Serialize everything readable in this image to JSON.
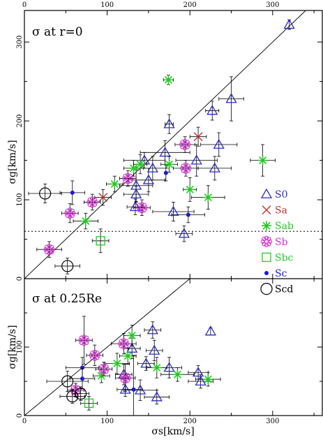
{
  "chart_data": [
    {
      "type": "scatter",
      "panel_label": "σ at r=0",
      "xlabel": "",
      "ylabel": "σg[km/s]",
      "xlim": [
        0,
        360
      ],
      "ylim": [
        0,
        340
      ],
      "x_ticks": [
        0,
        100,
        200,
        300
      ],
      "y_ticks": [
        0,
        100,
        200,
        300
      ],
      "top_ticks": [
        "0",
        "100",
        "200",
        "300"
      ],
      "left_ticks": [
        "0",
        "100",
        "200",
        "300"
      ],
      "reference_lines": [
        {
          "kind": "one-to-one",
          "style": "solid"
        },
        {
          "kind": "horizontal",
          "y": 60,
          "style": "dotted"
        }
      ],
      "legend": {
        "placement": "right",
        "entries": [
          {
            "label": "S0",
            "marker": "triangle",
            "color": "#2b2bc8"
          },
          {
            "label": "Sa",
            "marker": "cross",
            "color": "#c83030"
          },
          {
            "label": "Sab",
            "marker": "star",
            "color": "#22c822"
          },
          {
            "label": "Sb",
            "marker": "flower",
            "color": "#d42ad4"
          },
          {
            "label": "Sbc",
            "marker": "square",
            "color": "#28c828"
          },
          {
            "label": "Sc",
            "marker": "dot",
            "color": "#1a1ae0"
          },
          {
            "label": "Scd",
            "marker": "circle",
            "color": "#000000"
          }
        ]
      },
      "series": [
        {
          "name": "S0",
          "points": [
            {
              "x": 320,
              "y": 322,
              "ey": 6
            },
            {
              "x": 250,
              "y": 228,
              "ex": 15,
              "ey": 28
            },
            {
              "x": 227,
              "y": 213,
              "ex": 8,
              "ey": 12
            },
            {
              "x": 175,
              "y": 196,
              "ex": 5,
              "ey": 12
            },
            {
              "x": 235,
              "y": 170,
              "ex": 22,
              "ey": 15
            },
            {
              "x": 208,
              "y": 150,
              "ex": 25,
              "ey": 20
            },
            {
              "x": 150,
              "y": 125,
              "ex": 20,
              "ey": 15
            },
            {
              "x": 145,
              "y": 150,
              "ex": 25,
              "ey": 10
            },
            {
              "x": 135,
              "y": 118,
              "ex": 20,
              "ey": 20
            },
            {
              "x": 155,
              "y": 140,
              "ex": 20,
              "ey": 15
            },
            {
              "x": 170,
              "y": 160,
              "ex": 30,
              "ey": 15
            },
            {
              "x": 230,
              "y": 140,
              "ex": 20,
              "ey": 15
            },
            {
              "x": 134,
              "y": 91,
              "ex": 10,
              "ey": 10
            },
            {
              "x": 180,
              "y": 85,
              "ex": 25,
              "ey": 12
            },
            {
              "x": 193,
              "y": 57,
              "ex": 10,
              "ey": 10
            },
            {
              "x": 135,
              "y": 107,
              "ex": 15,
              "ey": 10
            }
          ]
        },
        {
          "name": "Sa",
          "points": [
            {
              "x": 95,
              "y": 103,
              "ex": 10,
              "ey": 10
            },
            {
              "x": 210,
              "y": 180,
              "ex": 10,
              "ey": 12
            }
          ]
        },
        {
          "name": "Sab",
          "points": [
            {
              "x": 174,
              "y": 252,
              "ex": 6,
              "ey": 6
            },
            {
              "x": 288,
              "y": 150,
              "ex": 15,
              "ey": 20
            },
            {
              "x": 222,
              "y": 103,
              "ex": 20,
              "ey": 15
            },
            {
              "x": 200,
              "y": 113,
              "ex": 8,
              "ey": 15
            },
            {
              "x": 175,
              "y": 145,
              "ex": 10,
              "ey": 10
            },
            {
              "x": 109,
              "y": 120,
              "ex": 10,
              "ey": 10
            },
            {
              "x": 74,
              "y": 73,
              "ex": 15,
              "ey": 10
            },
            {
              "x": 132,
              "y": 140,
              "ex": 12,
              "ey": 10
            },
            {
              "x": 140,
              "y": 145,
              "ex": 8,
              "ey": 12
            }
          ]
        },
        {
          "name": "Sb",
          "points": [
            {
              "x": 30,
              "y": 37,
              "ex": 15,
              "ey": 10
            },
            {
              "x": 55,
              "y": 83,
              "ex": 10,
              "ey": 12
            },
            {
              "x": 82,
              "y": 97,
              "ex": 10,
              "ey": 10
            },
            {
              "x": 125,
              "y": 127,
              "ex": 10,
              "ey": 10
            },
            {
              "x": 142,
              "y": 90,
              "ex": 10,
              "ey": 10
            },
            {
              "x": 195,
              "y": 140,
              "ex": 15,
              "ey": 10
            },
            {
              "x": 194,
              "y": 170,
              "ex": 12,
              "ey": 10
            }
          ]
        },
        {
          "name": "Sbc",
          "points": [
            {
              "x": 92,
              "y": 48,
              "ex": 10,
              "ey": 15
            }
          ]
        },
        {
          "name": "Sc",
          "points": [
            {
              "x": 58,
              "y": 109,
              "ex": 15,
              "ey": 15
            },
            {
              "x": 171,
              "y": 134,
              "ey": 10
            },
            {
              "x": 198,
              "y": 81,
              "ex": 20,
              "ey": 10
            }
          ]
        },
        {
          "name": "Scd",
          "points": [
            {
              "x": 25,
              "y": 108,
              "ex": 20,
              "ey": 12
            },
            {
              "x": 52,
              "y": 16,
              "ex": 15,
              "ey": 10
            }
          ]
        }
      ]
    },
    {
      "type": "scatter",
      "panel_label": "σ at 0.25Re",
      "xlabel": "σs[km/s]",
      "ylabel": "σg[km/s]",
      "xlim": [
        0,
        360
      ],
      "ylim": [
        0,
        200
      ],
      "x_ticks": [
        0,
        100,
        200,
        300
      ],
      "y_ticks": [
        0,
        100
      ],
      "bottom_ticks": [
        "0",
        "100",
        "200",
        "300"
      ],
      "left_ticks": [
        "0",
        "100"
      ],
      "reference_lines": [
        {
          "kind": "one-to-one",
          "style": "solid"
        }
      ],
      "series": [
        {
          "name": "S0",
          "points": [
            {
              "x": 225,
              "y": 123,
              "ey": 5
            },
            {
              "x": 155,
              "y": 125,
              "ex": 10,
              "ey": 12
            },
            {
              "x": 157,
              "y": 95,
              "ex": 10,
              "ey": 15
            },
            {
              "x": 130,
              "y": 98,
              "ex": 10,
              "ey": 15
            },
            {
              "x": 147,
              "y": 76,
              "ex": 10,
              "ey": 10
            },
            {
              "x": 175,
              "y": 70,
              "ex": 15,
              "ey": 15
            },
            {
              "x": 210,
              "y": 63,
              "ex": 12,
              "ey": 10
            },
            {
              "x": 213,
              "y": 50,
              "ex": 15,
              "ey": 10
            },
            {
              "x": 160,
              "y": 27,
              "ex": 15,
              "ey": 10
            },
            {
              "x": 140,
              "y": 37,
              "ex": 20,
              "ey": 15
            },
            {
              "x": 120,
              "y": 60,
              "ex": 10,
              "ey": 15
            },
            {
              "x": 122,
              "y": 38,
              "ex": 10,
              "ey": 10
            }
          ]
        },
        {
          "name": "Sab",
          "points": [
            {
              "x": 130,
              "y": 117,
              "ex": 10,
              "ey": 15
            },
            {
              "x": 112,
              "y": 76,
              "ex": 15,
              "ey": 15
            },
            {
              "x": 125,
              "y": 87,
              "ex": 10,
              "ey": 12
            },
            {
              "x": 160,
              "y": 70,
              "ex": 12,
              "ey": 15
            },
            {
              "x": 185,
              "y": 60,
              "ex": 20,
              "ey": 10
            },
            {
              "x": 222,
              "y": 53,
              "ex": 15,
              "ey": 10
            },
            {
              "x": 93,
              "y": 58,
              "ex": 10,
              "ey": 10
            }
          ]
        },
        {
          "name": "Sb",
          "points": [
            {
              "x": 72,
              "y": 110,
              "ex": 10,
              "ey": 35
            },
            {
              "x": 120,
              "y": 105,
              "ex": 15,
              "ey": 15
            },
            {
              "x": 85,
              "y": 88,
              "ex": 10,
              "ey": 15
            },
            {
              "x": 96,
              "y": 68,
              "ex": 10,
              "ey": 10
            },
            {
              "x": 122,
              "y": 55,
              "ex": 12,
              "ey": 20
            },
            {
              "x": 62,
              "y": 37,
              "ex": 10,
              "ey": 10
            }
          ]
        },
        {
          "name": "Sbc",
          "points": [
            {
              "x": 78,
              "y": 18,
              "ex": 10,
              "ey": 10
            }
          ]
        },
        {
          "name": "Sc",
          "points": [
            {
              "x": 70,
              "y": 70,
              "ex": 20,
              "ey": 15
            },
            {
              "x": 70,
              "y": 54,
              "ex": 15,
              "ey": 15
            },
            {
              "x": 132,
              "y": 38,
              "ex": 10,
              "ey": 50
            }
          ]
        },
        {
          "name": "Scd",
          "points": [
            {
              "x": 52,
              "y": 50,
              "ex": 25,
              "ey": 15
            },
            {
              "x": 58,
              "y": 28,
              "ex": 15,
              "ey": 10
            },
            {
              "x": 68,
              "y": 32,
              "ex": 10,
              "ey": 10
            }
          ]
        }
      ]
    }
  ]
}
